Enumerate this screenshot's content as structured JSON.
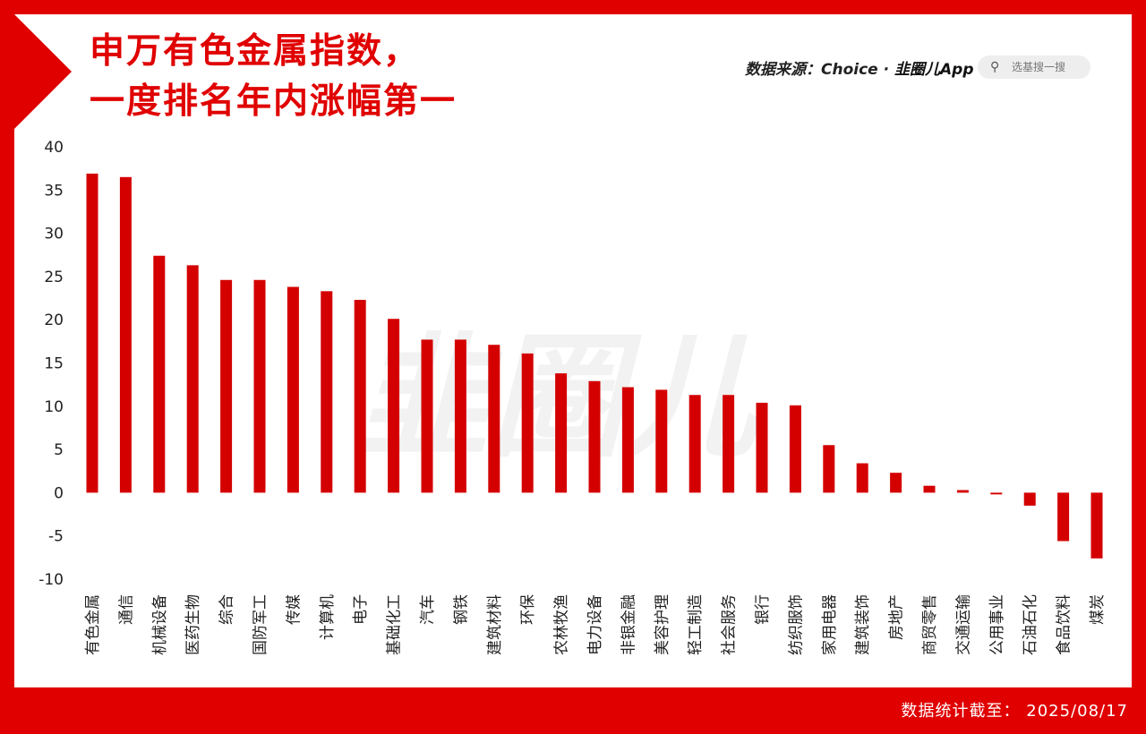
{
  "header": {
    "title_line1": "申万有色金属指数，",
    "title_line2": "一度排名年内涨幅第一",
    "source_label": "数据来源：Choice · ",
    "app_name": "韭圈儿App",
    "search_placeholder": "选基搜一搜"
  },
  "footer": {
    "stats_date": "数据统计截至： 2025/08/17"
  },
  "colors": {
    "brand_red": "#e00000",
    "bar_red": "#d40000"
  },
  "icons": {
    "search": "search-icon"
  },
  "chart_data": {
    "type": "bar",
    "categories": [
      "有色金属",
      "通信",
      "机械设备",
      "医药生物",
      "综合",
      "国防军工",
      "传媒",
      "计算机",
      "电子",
      "基础化工",
      "汽车",
      "钢铁",
      "建筑材料",
      "环保",
      "农林牧渔",
      "电力设备",
      "非银金融",
      "美容护理",
      "轻工制造",
      "社会服务",
      "银行",
      "纺织服饰",
      "家用电器",
      "建筑装饰",
      "房地产",
      "商贸零售",
      "交通运输",
      "公用事业",
      "石油石化",
      "食品饮料",
      "煤炭"
    ],
    "values": [
      36.9,
      36.5,
      27.4,
      26.3,
      24.6,
      24.6,
      23.8,
      23.3,
      22.3,
      20.1,
      17.7,
      17.7,
      17.1,
      16.1,
      13.8,
      12.9,
      12.2,
      11.9,
      11.3,
      11.3,
      10.4,
      10.1,
      5.5,
      3.4,
      2.3,
      0.8,
      0.3,
      -0.2,
      -1.5,
      -5.6,
      -7.6
    ],
    "yticks": [
      "40",
      "35",
      "30",
      "25",
      "20",
      "15",
      "10",
      "5",
      "0",
      "-5",
      "-10"
    ],
    "ylim": [
      -10,
      40
    ],
    "grid": false,
    "title": "",
    "xlabel": "",
    "ylabel": ""
  }
}
